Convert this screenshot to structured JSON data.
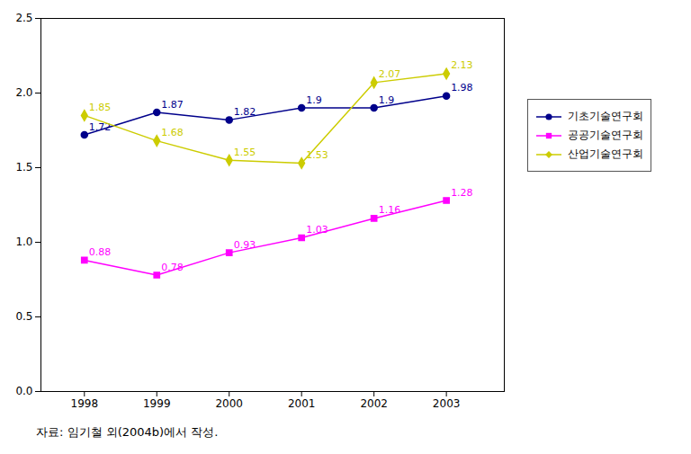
{
  "chart_data": {
    "type": "line",
    "x": [
      1998,
      1999,
      2000,
      2001,
      2002,
      2003
    ],
    "xlim": [
      1997.4,
      2003.8
    ],
    "xticks": [
      1998,
      1999,
      2000,
      2001,
      2002,
      2003
    ],
    "ylim": [
      0,
      2.5
    ],
    "yticks": [
      {
        "value": 0,
        "label": "0.0"
      },
      {
        "value": 0.5,
        "label": "0.5"
      },
      {
        "value": 1.0,
        "label": "1.0"
      },
      {
        "value": 1.5,
        "label": "1.5"
      },
      {
        "value": 2.0,
        "label": "2.0"
      },
      {
        "value": 2.5,
        "label": "2.5"
      }
    ],
    "series": [
      {
        "name": "기초기술연구회",
        "color": "#00008B",
        "marker": "circle",
        "values": [
          1.72,
          1.87,
          1.82,
          1.9,
          1.9,
          1.98
        ]
      },
      {
        "name": "공공기술연구회",
        "color": "#FF00FF",
        "marker": "square",
        "values": [
          0.88,
          0.78,
          0.93,
          1.03,
          1.16,
          1.28
        ]
      },
      {
        "name": "산업기술연구회",
        "color": "#CCCC00",
        "marker": "diamond",
        "values": [
          1.85,
          1.68,
          1.55,
          1.53,
          2.07,
          2.13
        ]
      }
    ],
    "data_labels": true,
    "grid": false,
    "legend": "right",
    "caption": "자료: 임기철 외(2004b)에서 작성."
  }
}
